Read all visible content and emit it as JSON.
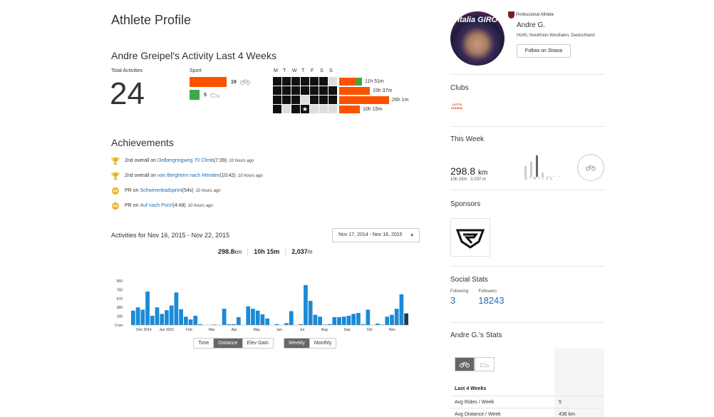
{
  "page": {
    "title": "Athlete Profile"
  },
  "activity": {
    "title": "Andre Greipel's Activity Last 4 Weeks",
    "total_label": "Total Activities",
    "total_value": "24",
    "sport_label": "Sport",
    "sports": [
      {
        "name": "Ride",
        "count": "19",
        "color": "#fc5200",
        "icon": "bike-icon"
      },
      {
        "name": "Run",
        "count": "5",
        "color": "#3ba84a",
        "icon": "shoe-icon"
      }
    ],
    "day_letters": [
      "M",
      "T",
      "W",
      "T",
      "F",
      "S",
      "S"
    ],
    "weeks": [
      {
        "time": "11h 51m",
        "orange_frac": 0.74,
        "green_frac": 0.26
      },
      {
        "time": "15h 37m",
        "orange_frac": 0.62,
        "green_frac": 0.0
      },
      {
        "time": "26h 1m",
        "orange_frac": 1.0,
        "green_frac": 0.0
      },
      {
        "time": "10h 15m",
        "orange_frac": 0.45,
        "green_frac": 0.0
      }
    ]
  },
  "achievements": {
    "title": "Achievements",
    "items": [
      {
        "prefix": "2nd overall on ",
        "segment": "Oelbergringweg 70 Climb",
        "detail": " (7:39)",
        "ago": "10 hours ago",
        "icon": "trophy-icon"
      },
      {
        "prefix": "2nd overall on ",
        "segment": "von Bergheim nach Menden",
        "detail": " (10:42)",
        "ago": "10 hours ago",
        "icon": "trophy-icon"
      },
      {
        "prefix": "PR on ",
        "segment": "Schwimmbadsprint",
        "detail": " (54s)",
        "ago": "10 hours ago",
        "icon": "pr-medal-icon"
      },
      {
        "prefix": "PR on ",
        "segment": "Auf nach Porz!",
        "detail": " (4:48)",
        "ago": "10 hours ago",
        "icon": "pr-medal-icon"
      }
    ]
  },
  "activities_range": {
    "label": "Activities for Nov 16, 2015 - Nov 22, 2015",
    "dropdown": "Nov 17, 2014 - Nov 16, 2015",
    "summary": {
      "distance": "298.8",
      "distance_unit": "km",
      "hours": "10h",
      "minutes": "15m",
      "hours_unit": "",
      "elev": "2,037",
      "elev_unit": "m"
    }
  },
  "chart_data": {
    "type": "bar",
    "title": "",
    "xlabel": "",
    "ylabel": "",
    "ylim": [
      0,
      950
    ],
    "y_ticks": [
      "0 km",
      "190",
      "380",
      "570",
      "760",
      "950"
    ],
    "x_month_labels": [
      "Dec 2014",
      "Jan 2015",
      "Feb",
      "Mar",
      "Apr",
      "May",
      "Jun",
      "Jul",
      "Aug",
      "Sep",
      "Oct",
      "Nov"
    ],
    "values": [
      310,
      380,
      330,
      720,
      200,
      380,
      240,
      320,
      420,
      700,
      340,
      180,
      120,
      200,
      20,
      0,
      0,
      10,
      0,
      350,
      20,
      20,
      170,
      0,
      400,
      350,
      310,
      230,
      140,
      0,
      20,
      0,
      40,
      300,
      0,
      20,
      860,
      520,
      220,
      180,
      10,
      20,
      170,
      170,
      180,
      200,
      240,
      260,
      20,
      330,
      0,
      30,
      10,
      180,
      220,
      350,
      660,
      250
    ]
  },
  "toggles": {
    "metric": [
      "Time",
      "Distance",
      "Elev Gain"
    ],
    "metric_active": "Distance",
    "period": [
      "Weekly",
      "Monthly"
    ],
    "period_active": "Weekly"
  },
  "profile": {
    "badge": "Professional Athlete",
    "name": "Andre G.",
    "location": "Hürth, Nordrhein-Westfalen, Deutschland",
    "follow_label": "Follow on Strava",
    "photo_text": "Italia GIRO"
  },
  "clubs": {
    "title": "Clubs",
    "club_logo_text": "LOTTO SOUDAL"
  },
  "this_week": {
    "title": "This Week",
    "distance": "298.8",
    "distance_unit": "km",
    "time": "10h 15m",
    "elev": "2,037 m",
    "day_letters": "MTWTFSS",
    "day_bars": [
      0.5,
      0.7,
      1.0,
      0.2,
      0.0,
      0.0,
      0.0
    ]
  },
  "sponsors": {
    "title": "Sponsors"
  },
  "social": {
    "title": "Social Stats",
    "following_label": "Following",
    "following": "3",
    "followers_label": "Followers",
    "followers": "18243"
  },
  "stats": {
    "title": "Andre G.'s Stats",
    "section": "Last 4 Weeks",
    "rows": [
      {
        "k": "Avg Rides / Week",
        "v": "5"
      },
      {
        "k": "Avg Distance / Week",
        "v": "436 km"
      }
    ]
  }
}
